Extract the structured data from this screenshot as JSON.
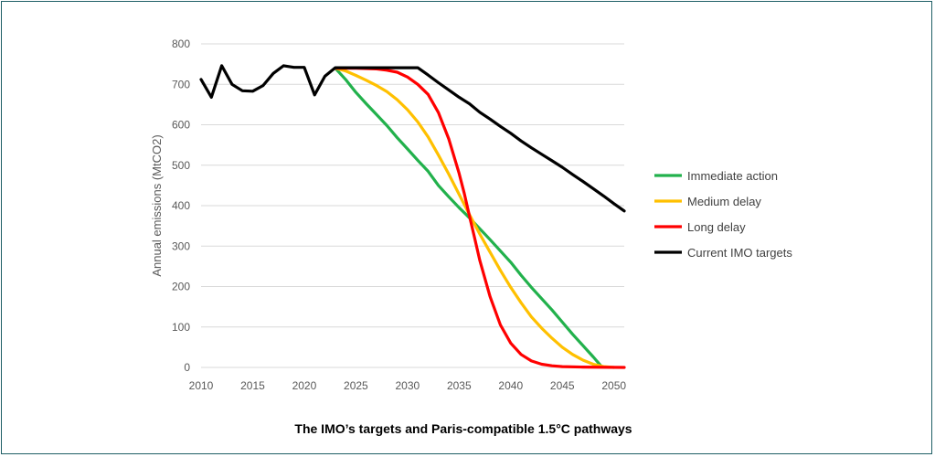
{
  "chart_data": {
    "type": "line",
    "title": "The IMO’s targets and Paris-compatible 1.5°C pathways",
    "xlabel": "",
    "ylabel": "Annual emissions (MtCO2)",
    "xlim": [
      2010,
      2051
    ],
    "ylim": [
      0,
      800
    ],
    "x_ticks": [
      "2010",
      "2015",
      "2020",
      "2025",
      "2030",
      "2035",
      "2040",
      "2045",
      "2050"
    ],
    "y_ticks": [
      "0",
      "100",
      "200",
      "300",
      "400",
      "500",
      "600",
      "700",
      "800"
    ],
    "grid": true,
    "legend_position": "right",
    "series": [
      {
        "name": "Immediate action",
        "color": "#22b14c",
        "points": [
          [
            2023,
            740
          ],
          [
            2024,
            712
          ],
          [
            2025,
            680
          ],
          [
            2026,
            652
          ],
          [
            2027,
            625
          ],
          [
            2028,
            598
          ],
          [
            2029,
            568
          ],
          [
            2030,
            540
          ],
          [
            2031,
            512
          ],
          [
            2032,
            485
          ],
          [
            2033,
            450
          ],
          [
            2034,
            422
          ],
          [
            2035,
            395
          ],
          [
            2036,
            370
          ],
          [
            2037,
            343
          ],
          [
            2038,
            316
          ],
          [
            2039,
            288
          ],
          [
            2040,
            260
          ],
          [
            2041,
            228
          ],
          [
            2042,
            198
          ],
          [
            2043,
            170
          ],
          [
            2044,
            142
          ],
          [
            2045,
            112
          ],
          [
            2046,
            82
          ],
          [
            2047,
            54
          ],
          [
            2048,
            26
          ],
          [
            2048.8,
            2
          ]
        ]
      },
      {
        "name": "Medium delay",
        "color": "#ffc000",
        "points": [
          [
            2023,
            740
          ],
          [
            2024,
            733
          ],
          [
            2025,
            722
          ],
          [
            2026,
            710
          ],
          [
            2027,
            697
          ],
          [
            2028,
            682
          ],
          [
            2029,
            662
          ],
          [
            2030,
            637
          ],
          [
            2031,
            607
          ],
          [
            2032,
            570
          ],
          [
            2033,
            525
          ],
          [
            2034,
            478
          ],
          [
            2035,
            428
          ],
          [
            2036,
            378
          ],
          [
            2037,
            330
          ],
          [
            2038,
            285
          ],
          [
            2039,
            240
          ],
          [
            2040,
            198
          ],
          [
            2041,
            160
          ],
          [
            2042,
            125
          ],
          [
            2043,
            97
          ],
          [
            2044,
            72
          ],
          [
            2045,
            50
          ],
          [
            2046,
            32
          ],
          [
            2047,
            18
          ],
          [
            2048,
            8
          ],
          [
            2049,
            2
          ],
          [
            2050,
            0
          ]
        ]
      },
      {
        "name": "Long delay",
        "color": "#ff0000",
        "points": [
          [
            2023,
            740
          ],
          [
            2025,
            740
          ],
          [
            2027,
            738
          ],
          [
            2028,
            735
          ],
          [
            2029,
            730
          ],
          [
            2030,
            718
          ],
          [
            2031,
            700
          ],
          [
            2032,
            675
          ],
          [
            2033,
            630
          ],
          [
            2034,
            565
          ],
          [
            2035,
            480
          ],
          [
            2035.5,
            430
          ],
          [
            2036,
            375
          ],
          [
            2036.5,
            320
          ],
          [
            2037,
            265
          ],
          [
            2038,
            175
          ],
          [
            2039,
            105
          ],
          [
            2040,
            60
          ],
          [
            2041,
            32
          ],
          [
            2042,
            16
          ],
          [
            2043,
            8
          ],
          [
            2044,
            4
          ],
          [
            2045,
            2
          ],
          [
            2047,
            1
          ],
          [
            2051,
            0
          ]
        ]
      },
      {
        "name": "Current IMO targets",
        "color": "#000000",
        "points": [
          [
            2010,
            712
          ],
          [
            2011,
            668
          ],
          [
            2012,
            746
          ],
          [
            2013,
            700
          ],
          [
            2014,
            684
          ],
          [
            2015,
            683
          ],
          [
            2016,
            697
          ],
          [
            2017,
            727
          ],
          [
            2018,
            746
          ],
          [
            2019,
            742
          ],
          [
            2020,
            742
          ],
          [
            2021,
            674
          ],
          [
            2022,
            720
          ],
          [
            2023,
            741
          ],
          [
            2024,
            741
          ],
          [
            2025,
            741
          ],
          [
            2026,
            741
          ],
          [
            2027,
            741
          ],
          [
            2028,
            741
          ],
          [
            2029,
            741
          ],
          [
            2030,
            741
          ],
          [
            2031,
            741
          ],
          [
            2032,
            723
          ],
          [
            2033,
            704
          ],
          [
            2034,
            686
          ],
          [
            2035,
            668
          ],
          [
            2036,
            652
          ],
          [
            2037,
            631
          ],
          [
            2038,
            614
          ],
          [
            2039,
            596
          ],
          [
            2040,
            579
          ],
          [
            2041,
            560
          ],
          [
            2042,
            543
          ],
          [
            2043,
            527
          ],
          [
            2044,
            511
          ],
          [
            2045,
            495
          ],
          [
            2046,
            477
          ],
          [
            2047,
            460
          ],
          [
            2048,
            442
          ],
          [
            2049,
            424
          ],
          [
            2050,
            405
          ],
          [
            2051,
            387
          ]
        ]
      }
    ]
  }
}
